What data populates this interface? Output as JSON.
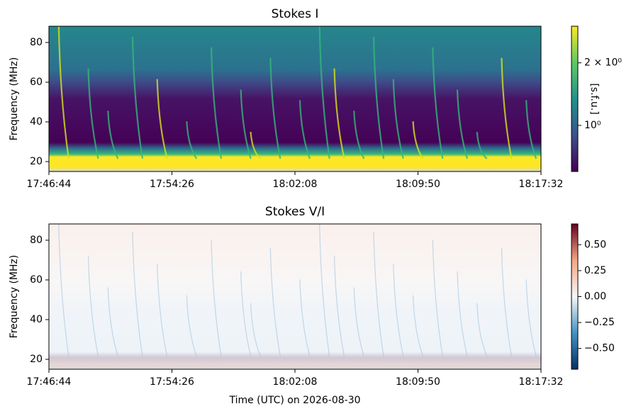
{
  "chart_data": [
    {
      "type": "spectrogram",
      "title": "Stokes I",
      "ylabel": "Frequency (MHz)",
      "ylim": [
        15,
        88.2
      ],
      "yticks": [
        20,
        40,
        60,
        80
      ],
      "xticks": [
        "17:46:44",
        "17:54:26",
        "18:02:08",
        "18:09:50",
        "18:17:32"
      ],
      "colormap": "viridis",
      "cscale": "log",
      "clim": [
        0.6,
        3.0
      ],
      "clabel": "[s.f.u.]",
      "cticks": [
        {
          "value": 1,
          "label": "10⁰"
        },
        {
          "value": 2,
          "label": "2 × 10⁰"
        }
      ]
    },
    {
      "type": "spectrogram",
      "title": "Stokes V/I",
      "ylabel": "Frequency (MHz)",
      "xlabel": "Time (UTC) on 2026-08-30",
      "ylim": [
        15,
        88.2
      ],
      "yticks": [
        20,
        40,
        60,
        80
      ],
      "xticks": [
        "17:46:44",
        "17:54:26",
        "18:02:08",
        "18:09:50",
        "18:17:32"
      ],
      "colormap": "RdBu_r",
      "cscale": "linear",
      "clim": [
        -0.7,
        0.7
      ],
      "cticks": [
        {
          "value": -0.5,
          "label": "−0.50"
        },
        {
          "value": -0.25,
          "label": "−0.25"
        },
        {
          "value": 0,
          "label": "0.00"
        },
        {
          "value": 0.25,
          "label": "0.25"
        },
        {
          "value": 0.5,
          "label": "0.50"
        }
      ]
    }
  ]
}
